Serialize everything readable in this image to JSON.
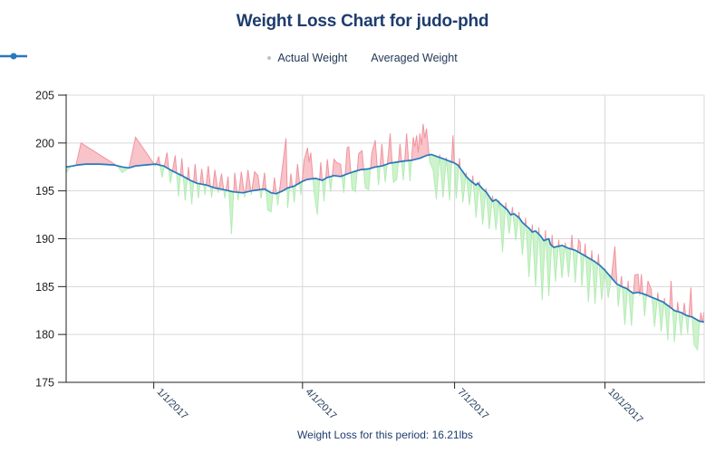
{
  "title": "Weight Loss Chart for judo-phd",
  "legend": {
    "actual_label": "Actual Weight",
    "averaged_label": "Averaged Weight"
  },
  "caption": "Weight Loss for this period: 16.21lbs",
  "colors": {
    "title_text": "#1e3c6e",
    "legend_text": "#233a57",
    "caption_text": "#1e3c6e",
    "legend_actual_dot": "#b9c3ce",
    "averaged_line": "#2878bd",
    "pink_fill": "#f8c3c9",
    "pink_stroke": "#f0949e",
    "green_fill": "#cdf3cd",
    "green_stroke": "#b2ecb2",
    "grid": "#d8d8d8",
    "axis": "#222222",
    "y_tick_text": "#222222",
    "x_tick_text": "#223a57"
  },
  "chart_data": {
    "type": "line",
    "title": "Weight Loss Chart for judo-phd",
    "xlabel": "",
    "ylabel": "",
    "legend_position": "top-center",
    "grid": true,
    "y_axis": {
      "min": 175,
      "max": 205,
      "step": 5,
      "ticks": [
        {
          "label": "205",
          "value": 205
        },
        {
          "label": "200",
          "value": 200
        },
        {
          "label": "195",
          "value": 195
        },
        {
          "label": "190",
          "value": 190
        },
        {
          "label": "185",
          "value": 185
        },
        {
          "label": "180",
          "value": 180
        },
        {
          "label": "175",
          "value": 175
        }
      ]
    },
    "x_axis": {
      "day_max": 386,
      "ticks": [
        {
          "label": "1/1/2017",
          "day": 53
        },
        {
          "label": "4/1/2017",
          "day": 143
        },
        {
          "label": "7/1/2017",
          "day": 235
        },
        {
          "label": "10/1/2017",
          "day": 326
        }
      ]
    },
    "series": [
      {
        "name": "Averaged Weight",
        "role": "averaged",
        "points": [
          [
            0,
            197.5
          ],
          [
            4,
            197.6
          ],
          [
            7,
            197.7
          ],
          [
            12,
            197.8
          ],
          [
            20,
            197.8
          ],
          [
            29,
            197.7
          ],
          [
            34,
            197.5
          ],
          [
            38,
            197.4
          ],
          [
            42,
            197.6
          ],
          [
            48,
            197.7
          ],
          [
            54,
            197.8
          ],
          [
            59,
            197.6
          ],
          [
            64,
            197.1
          ],
          [
            70,
            196.6
          ],
          [
            75,
            196.1
          ],
          [
            79,
            195.8
          ],
          [
            85,
            195.6
          ],
          [
            90,
            195.3
          ],
          [
            96,
            195.1
          ],
          [
            101,
            194.9
          ],
          [
            107,
            194.8
          ],
          [
            112,
            195.0
          ],
          [
            116,
            195.1
          ],
          [
            120,
            195.2
          ],
          [
            124,
            194.8
          ],
          [
            127,
            194.7
          ],
          [
            131,
            195.0
          ],
          [
            134,
            195.3
          ],
          [
            138,
            195.5
          ],
          [
            143,
            196.0
          ],
          [
            146,
            196.2
          ],
          [
            151,
            196.3
          ],
          [
            155,
            196.1
          ],
          [
            158,
            196.4
          ],
          [
            162,
            196.6
          ],
          [
            166,
            196.5
          ],
          [
            169,
            196.7
          ],
          [
            174,
            197.0
          ],
          [
            178,
            197.2
          ],
          [
            183,
            197.3
          ],
          [
            187,
            197.5
          ],
          [
            191,
            197.6
          ],
          [
            196,
            197.9
          ],
          [
            200,
            198.0
          ],
          [
            204,
            198.1
          ],
          [
            209,
            198.2
          ],
          [
            214,
            198.4
          ],
          [
            218,
            198.7
          ],
          [
            221,
            198.8
          ],
          [
            224,
            198.6
          ],
          [
            229,
            198.3
          ],
          [
            232,
            198.1
          ],
          [
            235,
            197.9
          ],
          [
            237,
            197.7
          ],
          [
            240,
            197.0
          ],
          [
            242,
            196.5
          ],
          [
            245,
            196.0
          ],
          [
            248,
            195.6
          ],
          [
            249,
            195.8
          ],
          [
            252,
            195.2
          ],
          [
            254,
            194.9
          ],
          [
            256,
            194.4
          ],
          [
            258,
            193.9
          ],
          [
            260,
            194.1
          ],
          [
            263,
            193.6
          ],
          [
            265,
            193.3
          ],
          [
            267,
            193.0
          ],
          [
            269,
            192.5
          ],
          [
            271,
            192.6
          ],
          [
            274,
            192.2
          ],
          [
            276,
            191.7
          ],
          [
            278,
            191.4
          ],
          [
            280,
            191.1
          ],
          [
            282,
            190.7
          ],
          [
            284,
            190.8
          ],
          [
            287,
            190.3
          ],
          [
            289,
            189.8
          ],
          [
            292,
            190.0
          ],
          [
            293,
            189.4
          ],
          [
            295,
            189.1
          ],
          [
            300,
            189.3
          ],
          [
            304,
            189.0
          ],
          [
            308,
            188.8
          ],
          [
            312,
            188.4
          ],
          [
            316,
            188.0
          ],
          [
            320,
            187.6
          ],
          [
            323,
            187.2
          ],
          [
            326,
            186.7
          ],
          [
            330,
            185.9
          ],
          [
            333,
            185.3
          ],
          [
            336,
            185.0
          ],
          [
            339,
            184.8
          ],
          [
            343,
            184.3
          ],
          [
            346,
            184.4
          ],
          [
            350,
            184.2
          ],
          [
            354,
            183.9
          ],
          [
            357,
            183.7
          ],
          [
            361,
            183.4
          ],
          [
            365,
            182.9
          ],
          [
            368,
            182.5
          ],
          [
            372,
            182.3
          ],
          [
            375,
            182.0
          ],
          [
            379,
            181.8
          ],
          [
            383,
            181.4
          ],
          [
            386,
            181.3
          ]
        ]
      },
      {
        "name": "Actual Weight",
        "role": "actual",
        "points": [
          [
            0,
            196.9
          ],
          [
            3,
            197.6
          ],
          [
            6,
            197.7
          ],
          [
            9,
            200.0
          ],
          [
            31,
            197.6
          ],
          [
            34,
            196.9
          ],
          [
            38,
            197.4
          ],
          [
            42,
            200.6
          ],
          [
            54,
            197.6
          ],
          [
            56,
            198.6
          ],
          [
            58,
            196.4
          ],
          [
            61,
            199.0
          ],
          [
            63,
            195.8
          ],
          [
            66,
            198.7
          ],
          [
            68,
            194.4
          ],
          [
            70,
            198.4
          ],
          [
            72,
            194.0
          ],
          [
            74,
            197.5
          ],
          [
            76,
            193.6
          ],
          [
            78,
            197.8
          ],
          [
            80,
            194.2
          ],
          [
            82,
            197.3
          ],
          [
            84,
            194.6
          ],
          [
            86,
            197.6
          ],
          [
            88,
            194.3
          ],
          [
            90,
            197.2
          ],
          [
            92,
            194.8
          ],
          [
            94,
            196.8
          ],
          [
            96,
            194.2
          ],
          [
            98,
            196.5
          ],
          [
            100,
            190.5
          ],
          [
            102,
            196.9
          ],
          [
            104,
            194.0
          ],
          [
            106,
            197.0
          ],
          [
            108,
            194.3
          ],
          [
            110,
            197.2
          ],
          [
            112,
            194.6
          ],
          [
            114,
            197.0
          ],
          [
            116,
            196.6
          ],
          [
            118,
            194.2
          ],
          [
            120,
            196.9
          ],
          [
            122,
            193.0
          ],
          [
            124,
            192.8
          ],
          [
            126,
            196.4
          ],
          [
            128,
            193.5
          ],
          [
            130,
            196.3
          ],
          [
            133,
            200.5
          ],
          [
            134,
            193.2
          ],
          [
            136,
            196.8
          ],
          [
            138,
            193.8
          ],
          [
            140,
            197.8
          ],
          [
            142,
            194.6
          ],
          [
            144,
            198.2
          ],
          [
            146,
            199.5
          ],
          [
            147,
            198.0
          ],
          [
            148,
            199.0
          ],
          [
            150,
            194.9
          ],
          [
            152,
            192.5
          ],
          [
            154,
            198.0
          ],
          [
            156,
            193.9
          ],
          [
            158,
            198.3
          ],
          [
            160,
            194.9
          ],
          [
            162,
            198.3
          ],
          [
            164,
            197.9
          ],
          [
            166,
            197.8
          ],
          [
            168,
            194.8
          ],
          [
            170,
            199.5
          ],
          [
            171,
            199.6
          ],
          [
            173,
            195.2
          ],
          [
            175,
            194.9
          ],
          [
            177,
            198.9
          ],
          [
            179,
            199.2
          ],
          [
            181,
            195.3
          ],
          [
            183,
            195.1
          ],
          [
            185,
            199.0
          ],
          [
            187,
            200.3
          ],
          [
            189,
            195.6
          ],
          [
            191,
            199.9
          ],
          [
            193,
            195.9
          ],
          [
            195,
            198.9
          ],
          [
            196,
            201.0
          ],
          [
            198,
            195.9
          ],
          [
            200,
            196.2
          ],
          [
            202,
            199.9
          ],
          [
            204,
            196.1
          ],
          [
            206,
            201.0
          ],
          [
            208,
            196.0
          ],
          [
            210,
            200.6
          ],
          [
            211,
            199.6
          ],
          [
            212,
            200.8
          ],
          [
            213,
            199.0
          ],
          [
            214,
            201.0
          ],
          [
            215,
            199.8
          ],
          [
            216,
            202.0
          ],
          [
            217,
            200.5
          ],
          [
            218,
            201.5
          ],
          [
            220,
            198.0
          ],
          [
            222,
            197.2
          ],
          [
            224,
            194.1
          ],
          [
            226,
            198.8
          ],
          [
            228,
            194.3
          ],
          [
            230,
            198.5
          ],
          [
            232,
            194.0
          ],
          [
            234,
            200.8
          ],
          [
            236,
            194.2
          ],
          [
            238,
            198.4
          ],
          [
            240,
            193.8
          ],
          [
            242,
            196.9
          ],
          [
            244,
            193.5
          ],
          [
            246,
            196.6
          ],
          [
            248,
            192.2
          ],
          [
            250,
            196.0
          ],
          [
            252,
            191.5
          ],
          [
            254,
            195.3
          ],
          [
            256,
            191.0
          ],
          [
            258,
            194.5
          ],
          [
            260,
            190.9
          ],
          [
            262,
            194.0
          ],
          [
            264,
            188.6
          ],
          [
            266,
            193.8
          ],
          [
            268,
            190.5
          ],
          [
            270,
            193.3
          ],
          [
            272,
            189.8
          ],
          [
            274,
            192.8
          ],
          [
            276,
            188.3
          ],
          [
            278,
            192.2
          ],
          [
            280,
            186.0
          ],
          [
            282,
            191.5
          ],
          [
            284,
            185.0
          ],
          [
            286,
            191.2
          ],
          [
            288,
            183.6
          ],
          [
            290,
            190.9
          ],
          [
            292,
            184.0
          ],
          [
            294,
            190.4
          ],
          [
            296,
            185.5
          ],
          [
            298,
            189.9
          ],
          [
            300,
            185.9
          ],
          [
            302,
            189.6
          ],
          [
            304,
            186.0
          ],
          [
            306,
            190.4
          ],
          [
            308,
            185.4
          ],
          [
            310,
            189.9
          ],
          [
            311,
            189.6
          ],
          [
            312,
            185.0
          ],
          [
            314,
            189.5
          ],
          [
            316,
            183.4
          ],
          [
            318,
            188.8
          ],
          [
            320,
            183.2
          ],
          [
            322,
            188.4
          ],
          [
            324,
            183.6
          ],
          [
            326,
            186.9
          ],
          [
            328,
            183.8
          ],
          [
            330,
            186.2
          ],
          [
            332,
            189.2
          ],
          [
            334,
            182.9
          ],
          [
            336,
            186.1
          ],
          [
            338,
            181.0
          ],
          [
            340,
            185.6
          ],
          [
            342,
            180.9
          ],
          [
            344,
            186.2
          ],
          [
            346,
            186.3
          ],
          [
            347,
            184.0
          ],
          [
            348,
            186.3
          ],
          [
            350,
            181.9
          ],
          [
            352,
            185.6
          ],
          [
            354,
            184.7
          ],
          [
            356,
            180.8
          ],
          [
            358,
            184.4
          ],
          [
            360,
            180.3
          ],
          [
            362,
            183.8
          ],
          [
            364,
            179.4
          ],
          [
            366,
            185.6
          ],
          [
            368,
            179.2
          ],
          [
            370,
            183.4
          ],
          [
            372,
            179.9
          ],
          [
            374,
            183.3
          ],
          [
            376,
            180.1
          ],
          [
            378,
            184.9
          ],
          [
            379,
            180.9
          ],
          [
            380,
            178.9
          ],
          [
            382,
            178.4
          ],
          [
            383,
            180.8
          ],
          [
            384,
            182.3
          ],
          [
            385,
            181.2
          ],
          [
            386,
            182.4
          ]
        ]
      }
    ]
  }
}
